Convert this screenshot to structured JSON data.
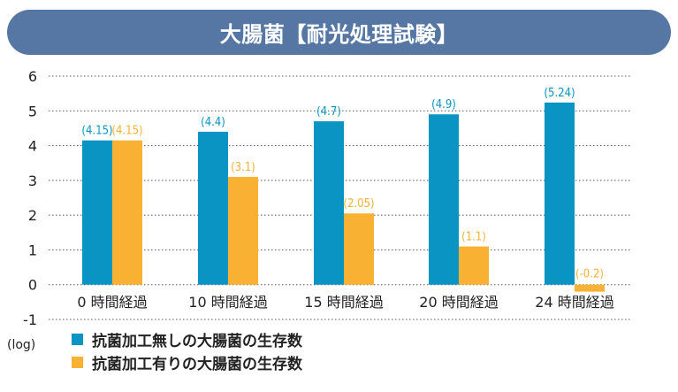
{
  "chart_data": {
    "type": "bar",
    "title": "大腸菌【耐光処理試験】",
    "ylabel": "(log)",
    "ylim": [
      -1,
      6
    ],
    "yticks": [
      "6",
      "5",
      "4",
      "3",
      "2",
      "1",
      "0",
      "-1"
    ],
    "categories": [
      "0 時間経過",
      "10 時間経過",
      "15 時間経過",
      "20 時間経過",
      "24 時間経過"
    ],
    "series": [
      {
        "name": "抗菌加工無しの大腸菌の生存数",
        "color": "#0a94c4",
        "values": [
          4.15,
          4.4,
          4.7,
          4.9,
          5.24
        ],
        "labels": [
          "(4.15)",
          "(4.4)",
          "(4.7)",
          "(4.9)",
          "(5.24)"
        ]
      },
      {
        "name": "抗菌加工有りの大腸菌の生存数",
        "color": "#f8b133",
        "values": [
          4.15,
          3.1,
          2.05,
          1.1,
          -0.2
        ],
        "labels": [
          "(4.15)",
          "(3.1)",
          "(2.05)",
          "(1.1)",
          "(-0.2)"
        ]
      }
    ],
    "grid": true,
    "legend": "bottom-left"
  }
}
